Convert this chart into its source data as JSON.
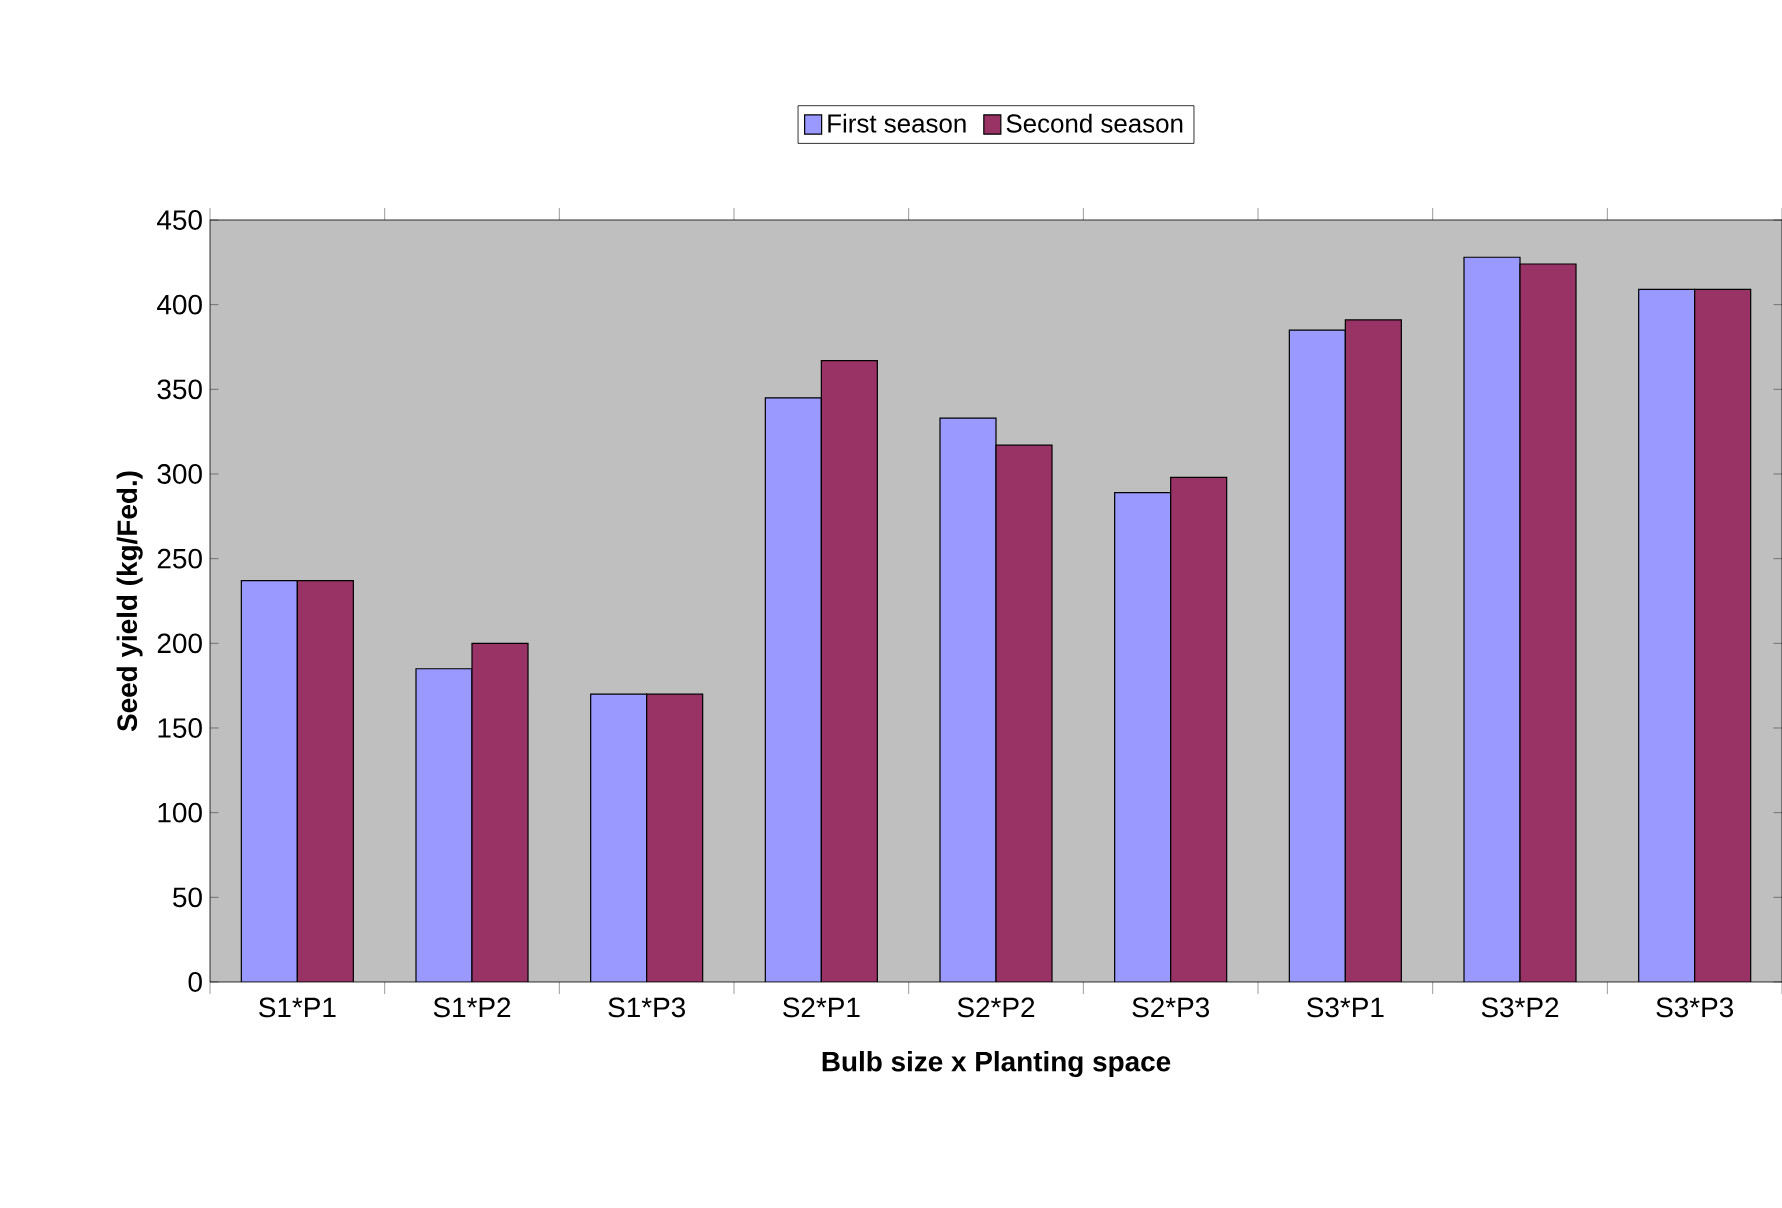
{
  "chart_data": {
    "type": "bar",
    "xlabel": "Bulb size x Planting space",
    "ylabel": "Seed yield (kg/Fed.)",
    "categories": [
      "S1*P1",
      "S1*P2",
      "S1*P3",
      "S2*P1",
      "S2*P2",
      "S2*P3",
      "S3*P1",
      "S3*P2",
      "S3*P3"
    ],
    "series": [
      {
        "name": "First season",
        "color": "#9999ff",
        "values": [
          237,
          185,
          170,
          345,
          333,
          289,
          385,
          428,
          409
        ]
      },
      {
        "name": "Second season",
        "color": "#993366",
        "values": [
          237,
          200,
          170,
          367,
          317,
          298,
          391,
          424,
          409
        ]
      }
    ],
    "ylim": [
      0,
      450
    ],
    "yticks": [
      0,
      50,
      100,
      150,
      200,
      250,
      300,
      350,
      400,
      450
    ],
    "legend": "top"
  }
}
